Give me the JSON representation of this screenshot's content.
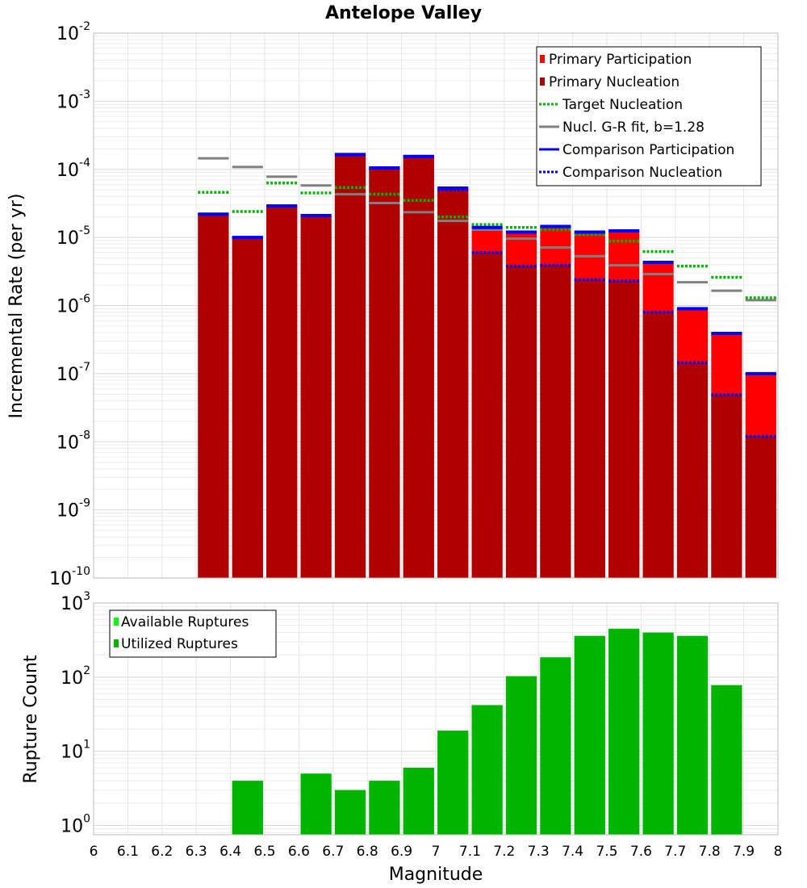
{
  "chart_data": [
    {
      "type": "bar",
      "title": "Antelope Valley",
      "xlabel": "",
      "ylabel": "Incremental Rate (per yr)",
      "xlim": [
        6,
        8
      ],
      "ylim": [
        1e-10,
        0.01
      ],
      "yscale": "log",
      "grid": true,
      "bin_width": 0.1,
      "x": [
        6.35,
        6.45,
        6.55,
        6.65,
        6.75,
        6.85,
        6.95,
        7.05,
        7.15,
        7.25,
        7.35,
        7.45,
        7.55,
        7.65,
        7.75,
        7.85,
        7.95
      ],
      "legend_position": "top-right",
      "legend": [
        "Primary Participation",
        "Primary Nucleation",
        "Target Nucleation",
        "Nucl. G-R fit, b=1.28",
        "Comparison Participation",
        "Comparison Nucleation"
      ],
      "series": [
        {
          "name": "Primary Participation",
          "style": "bar",
          "color": "#ff0000",
          "values": [
            2.2e-05,
            1e-05,
            2.9e-05,
            2.1e-05,
            0.000165,
            0.000105,
            0.000155,
            5.3e-05,
            1.4e-05,
            1.2e-05,
            1.45e-05,
            1.2e-05,
            1.25e-05,
            4.3e-06,
            9e-07,
            3.9e-07,
            1e-07
          ]
        },
        {
          "name": "Primary Nucleation",
          "style": "bar",
          "color": "#b00000",
          "values": [
            2.2e-05,
            1e-05,
            2.9e-05,
            2.1e-05,
            0.000165,
            0.000105,
            0.000155,
            5e-05,
            6e-06,
            3.8e-06,
            3.9e-06,
            2.4e-06,
            2.3e-06,
            8e-07,
            1.45e-07,
            4.9e-08,
            1.2e-08
          ]
        },
        {
          "name": "Target Nucleation",
          "style": "dotted",
          "color": "#00b400",
          "values": [
            4.6e-05,
            2.4e-05,
            6.3e-05,
            4.5e-05,
            5.4e-05,
            4.3e-05,
            3.5e-05,
            2e-05,
            1.55e-05,
            1.4e-05,
            1.3e-05,
            1.1e-05,
            8.8e-06,
            6.2e-06,
            3.8e-06,
            2.6e-06,
            1.3e-06
          ]
        },
        {
          "name": "Nucl. G-R fit, b=1.28",
          "style": "solid",
          "color": "#808080",
          "values": [
            0.000145,
            0.000108,
            7.8e-05,
            5.8e-05,
            4.3e-05,
            3.2e-05,
            2.35e-05,
            1.75e-05,
            1.3e-05,
            9.6e-06,
            7.1e-06,
            5.3e-06,
            3.9e-06,
            2.9e-06,
            2.2e-06,
            1.65e-06,
            1.2e-06
          ]
        },
        {
          "name": "Comparison Participation",
          "style": "solid",
          "color": "#0000ff",
          "values": [
            2.2e-05,
            1e-05,
            2.9e-05,
            2.1e-05,
            0.000165,
            0.000105,
            0.000155,
            5.3e-05,
            1.4e-05,
            1.2e-05,
            1.45e-05,
            1.2e-05,
            1.25e-05,
            4.3e-06,
            9e-07,
            3.9e-07,
            1e-07
          ]
        },
        {
          "name": "Comparison Nucleation",
          "style": "dotted",
          "color": "#0000ff",
          "values": [
            2.2e-05,
            1e-05,
            2.9e-05,
            2.1e-05,
            0.000165,
            0.000105,
            0.000155,
            5e-05,
            6e-06,
            3.8e-06,
            3.9e-06,
            2.4e-06,
            2.3e-06,
            8e-07,
            1.45e-07,
            4.9e-08,
            1.2e-08
          ]
        }
      ],
      "yticks": [
        {
          "base": "10",
          "exp": "-10",
          "value": 1e-10
        },
        {
          "base": "10",
          "exp": "-9",
          "value": 1e-09
        },
        {
          "base": "10",
          "exp": "-8",
          "value": 1e-08
        },
        {
          "base": "10",
          "exp": "-7",
          "value": 1e-07
        },
        {
          "base": "10",
          "exp": "-6",
          "value": 1e-06
        },
        {
          "base": "10",
          "exp": "-5",
          "value": 1e-05
        },
        {
          "base": "10",
          "exp": "-4",
          "value": 0.0001
        },
        {
          "base": "10",
          "exp": "-3",
          "value": 0.001
        },
        {
          "base": "10",
          "exp": "-2",
          "value": 0.01
        }
      ]
    },
    {
      "type": "bar",
      "title": "",
      "xlabel": "Magnitude",
      "ylabel": "Rupture Count",
      "xlim": [
        6,
        8
      ],
      "ylim": [
        0.75,
        1000
      ],
      "yscale": "log",
      "grid": true,
      "bin_width": 0.1,
      "x": [
        6.45,
        6.65,
        6.75,
        6.85,
        6.95,
        7.05,
        7.15,
        7.25,
        7.35,
        7.45,
        7.55,
        7.65,
        7.75,
        7.85
      ],
      "legend_position": "top-left",
      "legend": [
        "Available Ruptures",
        "Utilized Ruptures"
      ],
      "series": [
        {
          "name": "Available Ruptures",
          "style": "bar",
          "color": "#00ff00",
          "values": [
            4,
            5,
            3,
            4,
            6,
            19,
            42,
            103,
            185,
            360,
            450,
            400,
            360,
            78
          ]
        },
        {
          "name": "Utilized Ruptures",
          "style": "bar",
          "color": "#00b400",
          "values": [
            4,
            5,
            3,
            4,
            6,
            19,
            42,
            103,
            185,
            360,
            450,
            400,
            360,
            78
          ]
        }
      ],
      "yticks": [
        {
          "base": "10",
          "exp": "0",
          "value": 1
        },
        {
          "base": "10",
          "exp": "1",
          "value": 10
        },
        {
          "base": "10",
          "exp": "2",
          "value": 100
        },
        {
          "base": "10",
          "exp": "3",
          "value": 1000
        }
      ],
      "xticks": [
        "6",
        "6.1",
        "6.2",
        "6.3",
        "6.4",
        "6.5",
        "6.6",
        "6.7",
        "6.8",
        "6.9",
        "7",
        "7.1",
        "7.2",
        "7.3",
        "7.4",
        "7.5",
        "7.6",
        "7.7",
        "7.8",
        "7.9",
        "8"
      ]
    }
  ]
}
